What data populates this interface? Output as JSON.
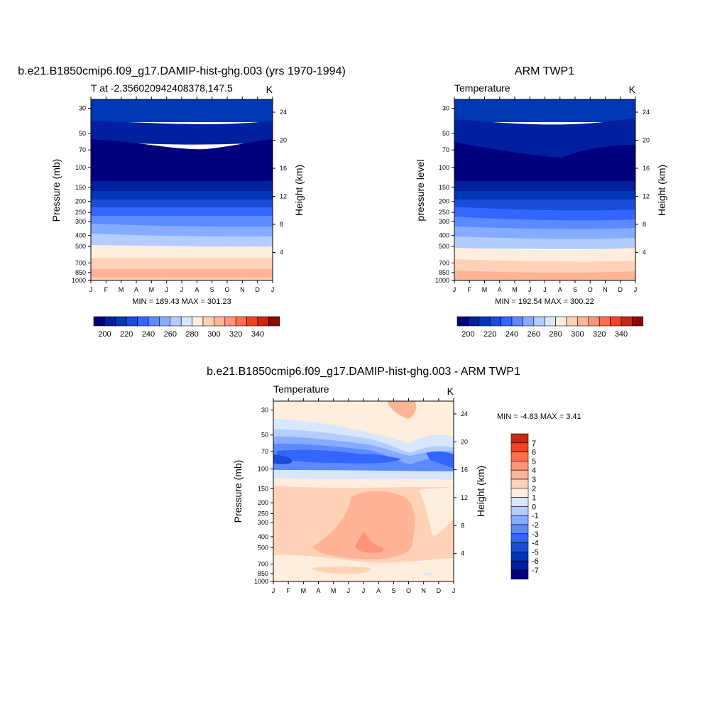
{
  "chart_data": [
    {
      "type": "heatmap",
      "title": "b.e21.B1850cmip6.f09_g17.DAMIP-hist-ghg.003 (yrs 1970-1994)",
      "subtitle_left": "T at -2.356020942408378,147.5",
      "subtitle_right": "K",
      "ylabel": "Pressure (mb)",
      "ylabel_right": "Height (km)",
      "x_ticks": [
        "J",
        "F",
        "M",
        "A",
        "M",
        "J",
        "J",
        "A",
        "S",
        "O",
        "N",
        "D",
        "J"
      ],
      "y_ticks": [
        30,
        50,
        70,
        100,
        150,
        200,
        250,
        300,
        400,
        500,
        700,
        850,
        1000
      ],
      "y_ticks_right": [
        24,
        20,
        16,
        12,
        8,
        4
      ],
      "ylim": [
        1000,
        25
      ],
      "log_y": true,
      "stats": "MIN = 189.43 MAX = 301.23",
      "colorbar": {
        "orientation": "horizontal",
        "levels": [
          195,
          200,
          205,
          210,
          220,
          230,
          240,
          250,
          260,
          270,
          280,
          290,
          300,
          310,
          320,
          330,
          340
        ],
        "labels": [
          200,
          220,
          240,
          260,
          280,
          300,
          320,
          340
        ],
        "colors": [
          "#00007f",
          "#0020a0",
          "#0037b4",
          "#1a4cd9",
          "#3366ff",
          "#5c8aff",
          "#86acff",
          "#b3cdff",
          "#d7e7ff",
          "#ffeedd",
          "#ffd2b8",
          "#ffb496",
          "#ff9478",
          "#ff6e48",
          "#f04422",
          "#c82812",
          "#8c0a00"
        ]
      }
    },
    {
      "type": "heatmap",
      "title": "ARM TWP1",
      "subtitle_left": "Temperature",
      "subtitle_right": "K",
      "ylabel": "pressure level",
      "ylabel_right": "Height (km)",
      "x_ticks": [
        "J",
        "F",
        "M",
        "A",
        "M",
        "J",
        "J",
        "A",
        "S",
        "O",
        "N",
        "D",
        "J"
      ],
      "y_ticks": [
        30,
        50,
        70,
        100,
        150,
        200,
        250,
        300,
        400,
        500,
        700,
        850,
        1000
      ],
      "y_ticks_right": [
        24,
        20,
        16,
        12,
        8,
        4
      ],
      "ylim": [
        1000,
        25
      ],
      "log_y": true,
      "stats": "MIN = 192.54 MAX = 300.22",
      "colorbar": {
        "orientation": "horizontal",
        "labels": [
          200,
          220,
          240,
          260,
          280,
          300,
          320,
          340
        ]
      }
    },
    {
      "type": "heatmap",
      "title": "b.e21.B1850cmip6.f09_g17.DAMIP-hist-ghg.003 - ARM TWP1",
      "subtitle_left": "Temperature",
      "subtitle_right": "K",
      "ylabel": "Pressure (mb)",
      "ylabel_right": "Height (km)",
      "x_ticks": [
        "J",
        "F",
        "M",
        "A",
        "M",
        "J",
        "J",
        "A",
        "S",
        "O",
        "N",
        "D",
        "J"
      ],
      "y_ticks": [
        30,
        50,
        70,
        100,
        150,
        200,
        250,
        300,
        400,
        500,
        700,
        850,
        1000
      ],
      "y_ticks_right": [
        24,
        20,
        16,
        12,
        8,
        4
      ],
      "ylim": [
        1000,
        25
      ],
      "log_y": true,
      "stats": "MIN =  -4.83 MAX =   3.41",
      "colorbar": {
        "orientation": "vertical",
        "labels": [
          7,
          6,
          5,
          4,
          3,
          2,
          1,
          0,
          -1,
          -2,
          -3,
          -4,
          -5,
          -6,
          -7
        ],
        "colors": [
          "#00007f",
          "#0020a0",
          "#0037b4",
          "#1a4cd9",
          "#3366ff",
          "#5c8aff",
          "#86acff",
          "#b3cdff",
          "#d7e7ff",
          "#ffeedd",
          "#ffd2b8",
          "#ffb496",
          "#ff9478",
          "#ff6e48",
          "#f04422",
          "#c82812",
          "#8c0a00"
        ]
      }
    }
  ]
}
